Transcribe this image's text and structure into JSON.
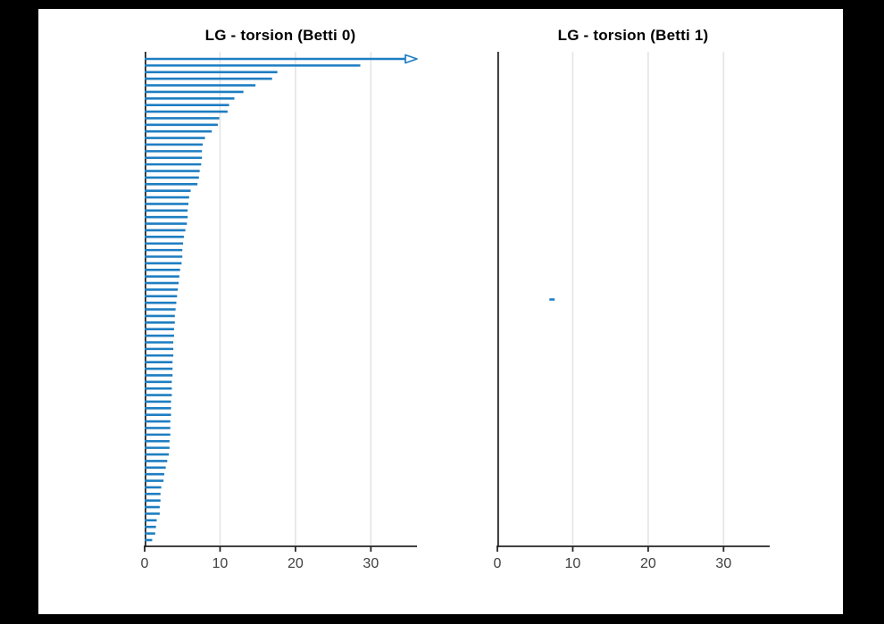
{
  "colors": {
    "background": "#000000",
    "paper": "#ffffff",
    "bar_blue": "#1e7ec2",
    "grid": "#e6e6e6",
    "axis": "#262626",
    "tick_label": "#3f3f3f",
    "title": "#000000"
  },
  "chart_data": [
    {
      "type": "barcode",
      "title": "LG - torsion (Betti 0)",
      "xlabel": "",
      "ylabel": "",
      "xlim": [
        0,
        36
      ],
      "xticks": [
        0,
        10,
        20,
        30
      ],
      "grid": "vertical-on",
      "infinity_marker": "open-right-arrow",
      "bars": [
        [
          0,
          "inf"
        ],
        [
          0,
          28.6
        ],
        [
          0,
          17.6
        ],
        [
          0,
          16.9
        ],
        [
          0,
          14.7
        ],
        [
          0,
          13.1
        ],
        [
          0,
          11.9
        ],
        [
          0,
          11.2
        ],
        [
          0,
          11.0
        ],
        [
          0,
          9.9
        ],
        [
          0,
          9.7
        ],
        [
          0,
          8.9
        ],
        [
          0,
          8.0
        ],
        [
          0,
          7.7
        ],
        [
          0,
          7.6
        ],
        [
          0,
          7.6
        ],
        [
          0,
          7.5
        ],
        [
          0,
          7.3
        ],
        [
          0,
          7.2
        ],
        [
          0,
          7.0
        ],
        [
          0,
          6.1
        ],
        [
          0,
          5.9
        ],
        [
          0,
          5.8
        ],
        [
          0,
          5.7
        ],
        [
          0,
          5.7
        ],
        [
          0,
          5.6
        ],
        [
          0,
          5.4
        ],
        [
          0,
          5.2
        ],
        [
          0,
          5.1
        ],
        [
          0,
          5.0
        ],
        [
          0,
          5.0
        ],
        [
          0,
          4.9
        ],
        [
          0,
          4.7
        ],
        [
          0,
          4.6
        ],
        [
          0,
          4.5
        ],
        [
          0,
          4.4
        ],
        [
          0,
          4.3
        ],
        [
          0,
          4.2
        ],
        [
          0,
          4.1
        ],
        [
          0,
          4.0
        ],
        [
          0,
          4.0
        ],
        [
          0,
          3.9
        ],
        [
          0,
          3.9
        ],
        [
          0,
          3.8
        ],
        [
          0,
          3.8
        ],
        [
          0,
          3.8
        ],
        [
          0,
          3.7
        ],
        [
          0,
          3.7
        ],
        [
          0,
          3.7
        ],
        [
          0,
          3.6
        ],
        [
          0,
          3.6
        ],
        [
          0,
          3.6
        ],
        [
          0,
          3.5
        ],
        [
          0,
          3.5
        ],
        [
          0,
          3.5
        ],
        [
          0,
          3.4
        ],
        [
          0,
          3.4
        ],
        [
          0,
          3.4
        ],
        [
          0,
          3.3
        ],
        [
          0,
          3.3
        ],
        [
          0,
          3.2
        ],
        [
          0,
          3.0
        ],
        [
          0,
          2.8
        ],
        [
          0,
          2.6
        ],
        [
          0,
          2.5
        ],
        [
          0,
          2.2
        ],
        [
          0,
          2.1
        ],
        [
          0,
          2.1
        ],
        [
          0,
          2.0
        ],
        [
          0,
          2.0
        ],
        [
          0,
          1.6
        ],
        [
          0,
          1.5
        ],
        [
          0,
          1.4
        ],
        [
          0,
          1.0
        ]
      ]
    },
    {
      "type": "barcode",
      "title": "LG - torsion (Betti 1)",
      "xlabel": "",
      "ylabel": "",
      "xlim": [
        0,
        36
      ],
      "xticks": [
        0,
        10,
        20,
        30
      ],
      "grid": "vertical-on",
      "bars": [
        [
          6.9,
          7.6
        ]
      ]
    }
  ]
}
